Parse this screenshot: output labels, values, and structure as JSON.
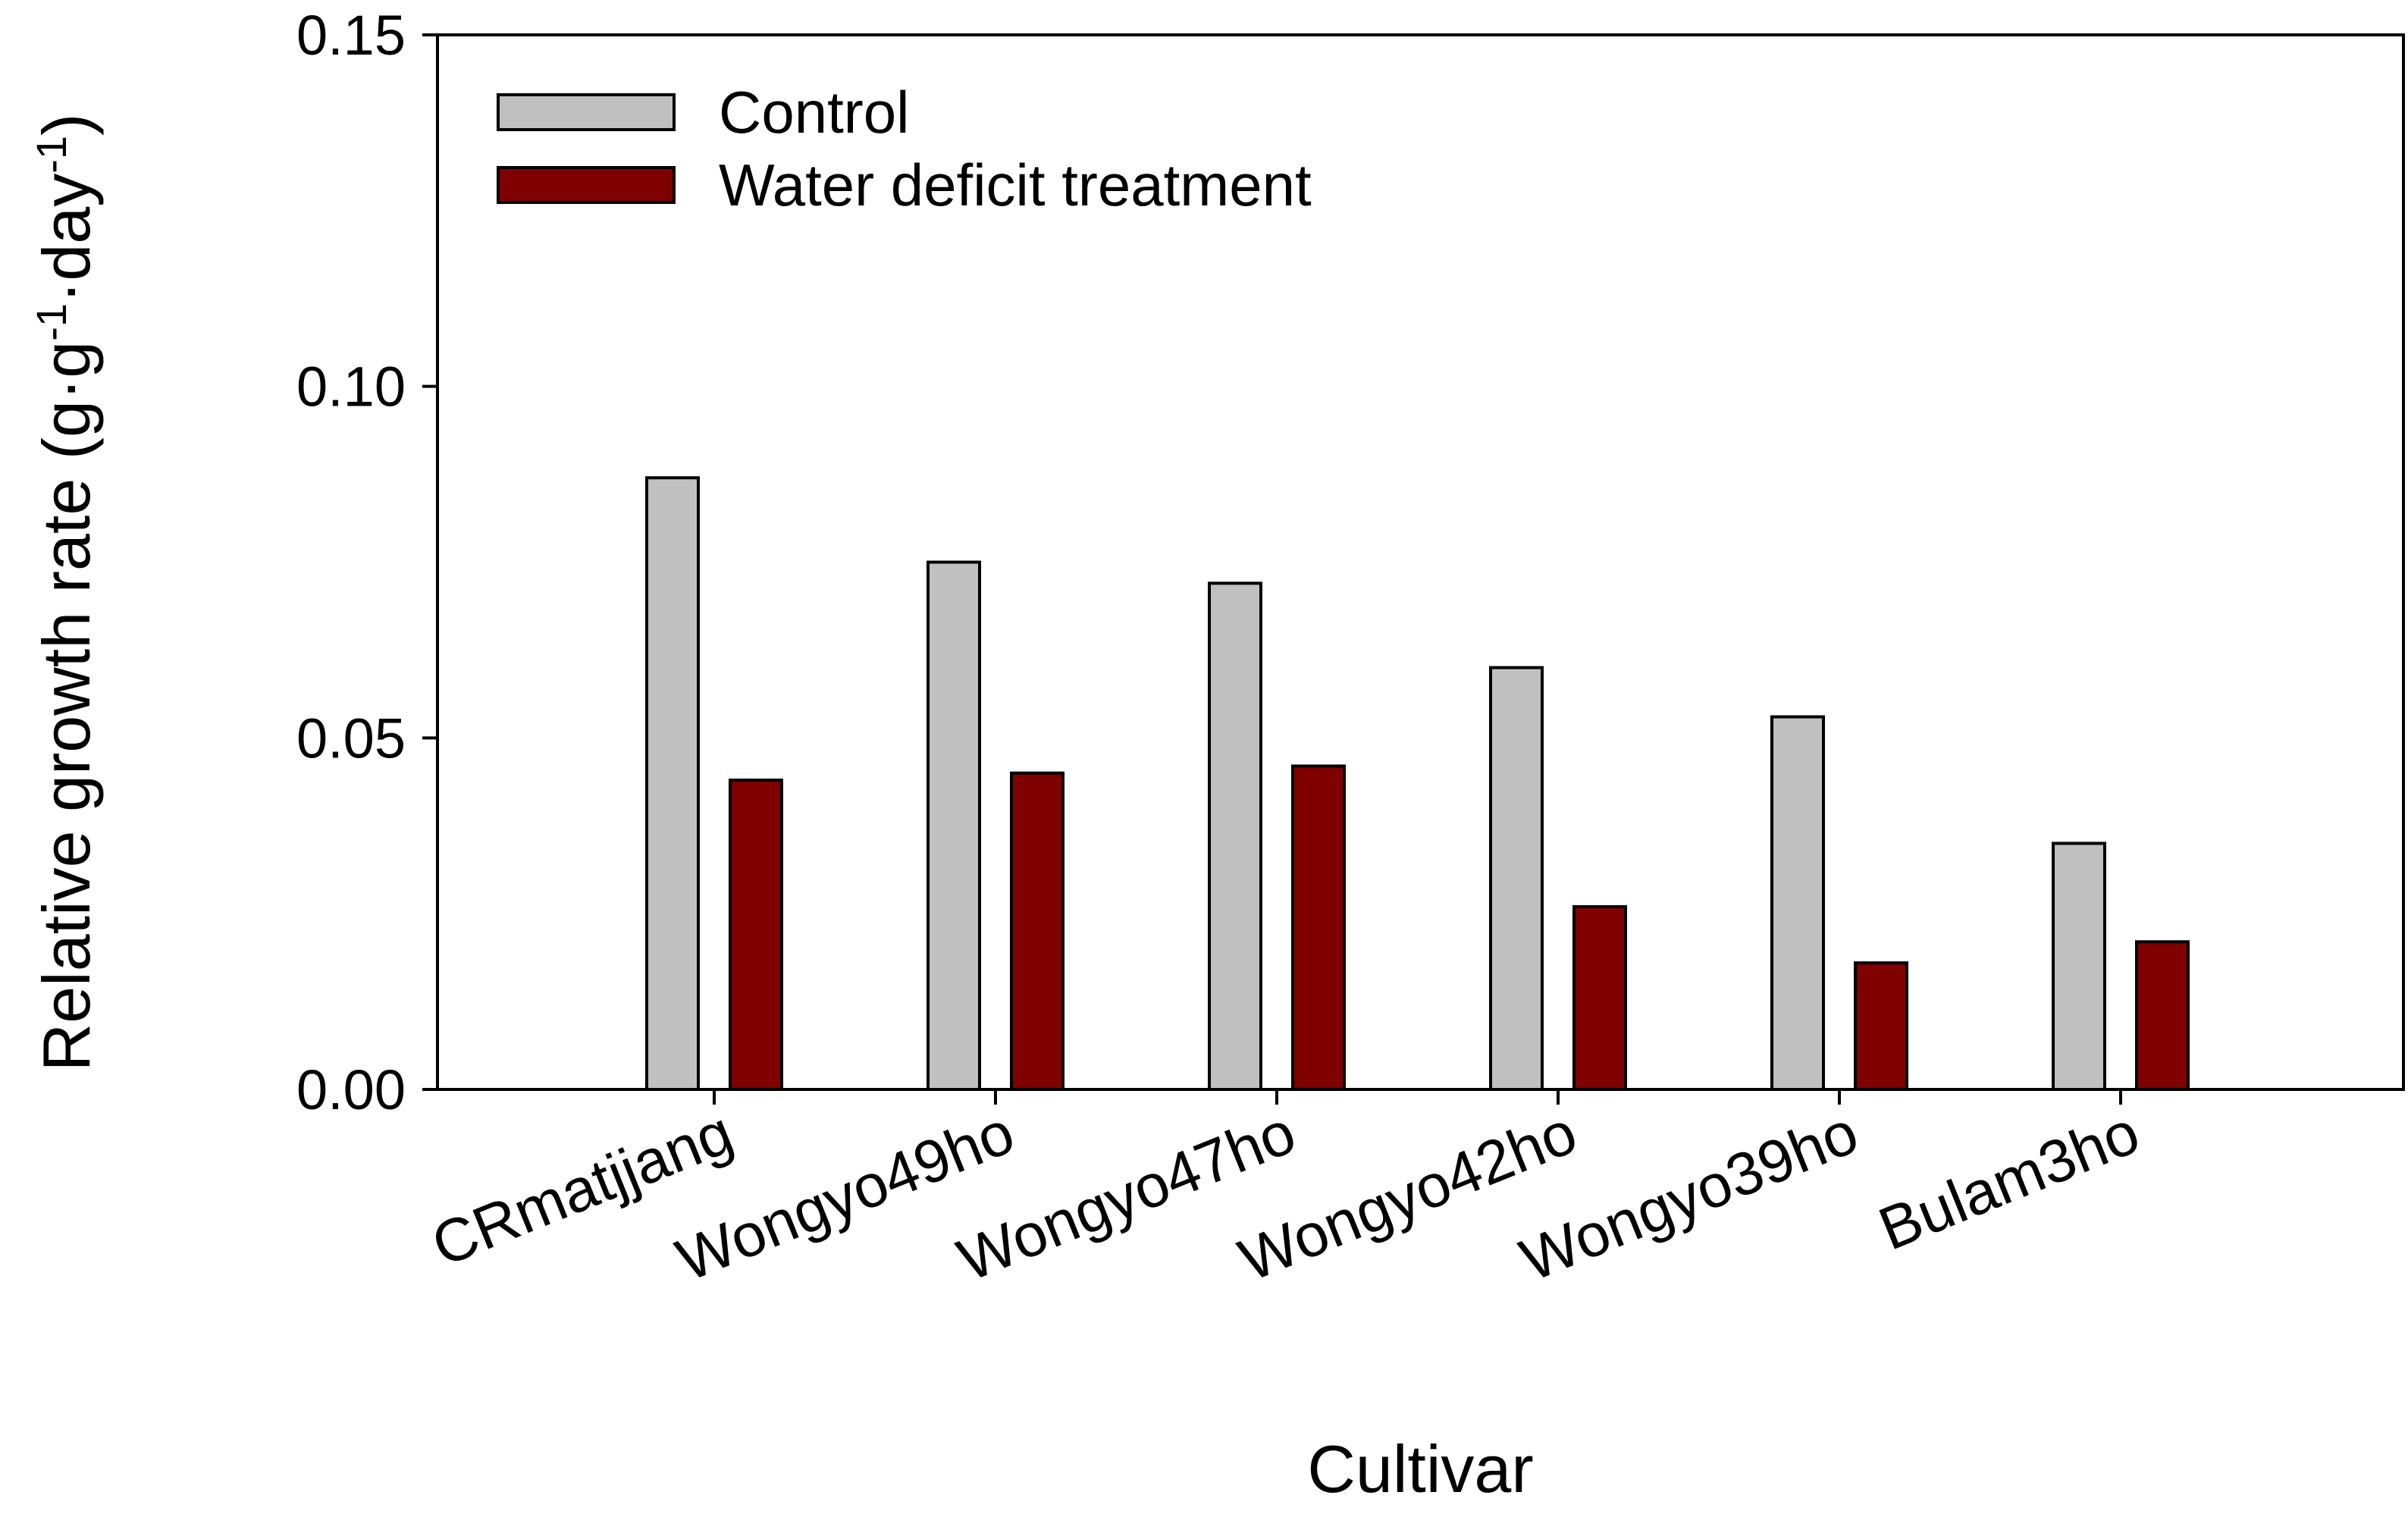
{
  "chart_data": {
    "type": "bar",
    "title": "",
    "xlabel": "Cultivar",
    "ylabel": {
      "main": "Relative growth rate (g",
      "dot1": "·",
      "g2": "g",
      "sup1": "-1",
      "dot2": "·",
      "day": "day",
      "sup2": "-1",
      "close": ")"
    },
    "ylim": [
      0,
      0.15
    ],
    "yticks": [
      0.0,
      0.05,
      0.1,
      0.15
    ],
    "ytick_labels": [
      "0.00",
      "0.05",
      "0.10",
      "0.15"
    ],
    "grid": false,
    "legend_position": "top-left",
    "categories": [
      "CRmatjjang",
      "Wongyo49ho",
      "Wongyo47ho",
      "Wongyo42ho",
      "Wongyo39ho",
      "Bulam3ho"
    ],
    "series": [
      {
        "name": "Control",
        "color": "#c0c0c0",
        "values": [
          0.087,
          0.075,
          0.072,
          0.06,
          0.053,
          0.035
        ]
      },
      {
        "name": "Water deficit treatment",
        "color": "#800000",
        "values": [
          0.044,
          0.045,
          0.046,
          0.026,
          0.018,
          0.021
        ]
      }
    ]
  }
}
